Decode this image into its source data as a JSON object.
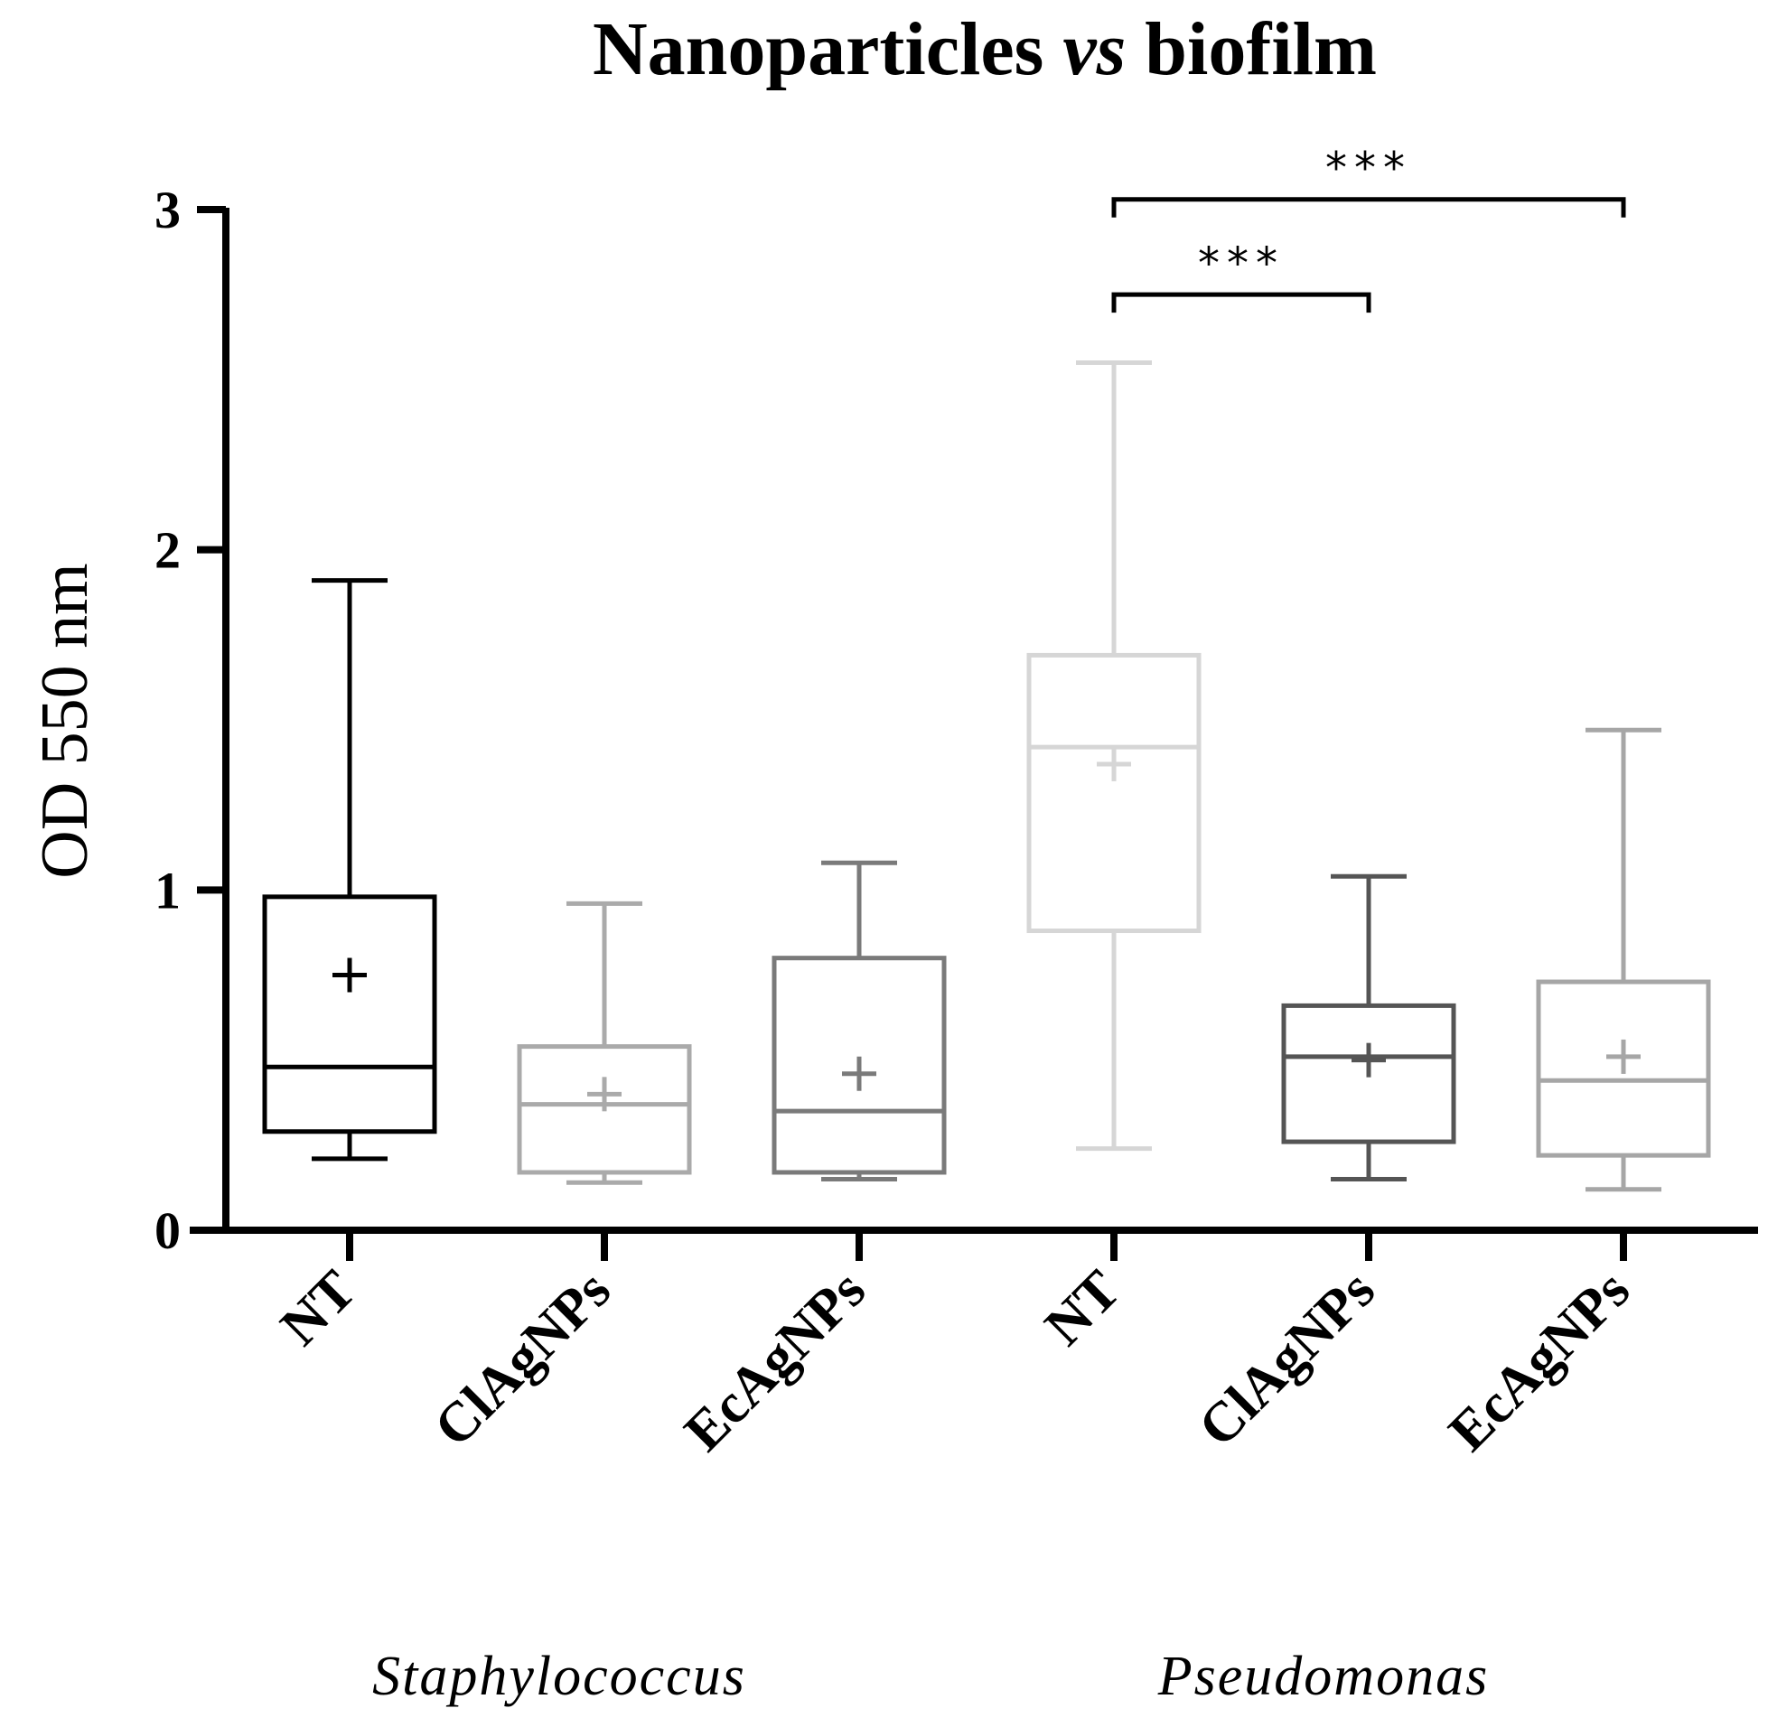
{
  "chart_data": {
    "type": "box",
    "title": {
      "before": "Nanoparticles ",
      "italic": "vs",
      "after": " biofilm"
    },
    "ylabel": "OD 550 nm",
    "xlabel": "",
    "ylim": [
      0,
      3
    ],
    "yticks": [
      0,
      1,
      2,
      3
    ],
    "groups": [
      {
        "label": "Staphylococcus",
        "categories": [
          0,
          1,
          2
        ]
      },
      {
        "label": "Pseudomonas",
        "categories": [
          3,
          4,
          5
        ]
      }
    ],
    "categories": [
      "NT",
      "ClAgNPs",
      "EcAgNPs",
      "NT",
      "ClAgNPs",
      "EcAgNPs"
    ],
    "boxes": [
      {
        "category": "NT",
        "group": "Staphylococcus",
        "min": 0.21,
        "q1": 0.29,
        "median": 0.48,
        "q3": 0.98,
        "max": 1.91,
        "mean": 0.75,
        "color": "#000000"
      },
      {
        "category": "ClAgNPs",
        "group": "Staphylococcus",
        "min": 0.14,
        "q1": 0.17,
        "median": 0.37,
        "q3": 0.54,
        "max": 0.96,
        "mean": 0.4,
        "color": "#aaaaaa"
      },
      {
        "category": "EcAgNPs",
        "group": "Staphylococcus",
        "min": 0.15,
        "q1": 0.17,
        "median": 0.35,
        "q3": 0.8,
        "max": 1.08,
        "mean": 0.46,
        "color": "#7a7a7a"
      },
      {
        "category": "NT",
        "group": "Pseudomonas",
        "min": 0.24,
        "q1": 0.88,
        "median": 1.42,
        "q3": 1.69,
        "max": 2.55,
        "mean": 1.37,
        "color": "#d6d6d6"
      },
      {
        "category": "ClAgNPs",
        "group": "Pseudomonas",
        "min": 0.15,
        "q1": 0.26,
        "median": 0.51,
        "q3": 0.66,
        "max": 1.04,
        "mean": 0.5,
        "color": "#555555"
      },
      {
        "category": "EcAgNPs",
        "group": "Pseudomonas",
        "min": 0.12,
        "q1": 0.22,
        "median": 0.44,
        "q3": 0.73,
        "max": 1.47,
        "mean": 0.51,
        "color": "#a6a6a6"
      }
    ],
    "annotations": [
      {
        "from": 3,
        "to": 5,
        "y": 3.03,
        "label": "***"
      },
      {
        "from": 3,
        "to": 4,
        "y": 2.75,
        "label": "***"
      }
    ]
  }
}
